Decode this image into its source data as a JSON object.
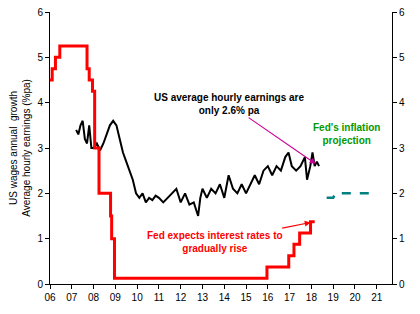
{
  "chart_data": {
    "type": "line",
    "y_label": "US wages annual  growth\nAverage hourly earnings (%pa)",
    "xlim": [
      2006,
      2021.7
    ],
    "xticks": [
      {
        "value": 2006,
        "label": "06"
      },
      {
        "value": 2007,
        "label": "07"
      },
      {
        "value": 2008,
        "label": "08"
      },
      {
        "value": 2009,
        "label": "09"
      },
      {
        "value": 2010,
        "label": "10"
      },
      {
        "value": 2011,
        "label": "11"
      },
      {
        "value": 2012,
        "label": "12"
      },
      {
        "value": 2013,
        "label": "13"
      },
      {
        "value": 2014,
        "label": "14"
      },
      {
        "value": 2015,
        "label": "15"
      },
      {
        "value": 2016,
        "label": "16"
      },
      {
        "value": 2017,
        "label": "17"
      },
      {
        "value": 2018,
        "label": "18"
      },
      {
        "value": 2019,
        "label": "19"
      },
      {
        "value": 2020,
        "label": "20"
      },
      {
        "value": 2021,
        "label": "21"
      }
    ],
    "ylim": [
      0,
      6
    ],
    "yticks": [
      0,
      1,
      2,
      3,
      4,
      5,
      6
    ],
    "y2lim": [
      0,
      6
    ],
    "y2ticks": [
      0,
      1,
      2,
      3,
      4,
      5,
      6
    ],
    "grid": false,
    "series": [
      {
        "color": "#000000",
        "line_style": "solid",
        "x": [
          2007.2,
          2007.3,
          2007.4,
          2007.5,
          2007.6,
          2007.7,
          2007.8,
          2007.9,
          2008.0,
          2008.15,
          2008.3,
          2008.45,
          2008.6,
          2008.75,
          2008.9,
          2009.05,
          2009.2,
          2009.35,
          2009.5,
          2009.65,
          2009.8,
          2009.95,
          2010.1,
          2010.25,
          2010.4,
          2010.55,
          2010.7,
          2010.85,
          2011.0,
          2011.2,
          2011.4,
          2011.6,
          2011.8,
          2012.0,
          2012.2,
          2012.4,
          2012.6,
          2012.8,
          2012.9,
          2013.0,
          2013.2,
          2013.4,
          2013.6,
          2013.8,
          2014.0,
          2014.2,
          2014.4,
          2014.6,
          2014.8,
          2015.0,
          2015.2,
          2015.4,
          2015.6,
          2015.8,
          2016.0,
          2016.2,
          2016.4,
          2016.6,
          2016.8,
          2016.95,
          2017.1,
          2017.3,
          2017.5,
          2017.7,
          2017.8,
          2017.95,
          2018.05,
          2018.15,
          2018.25,
          2018.35
        ],
        "values": [
          3.4,
          3.3,
          3.5,
          3.6,
          3.2,
          3.1,
          3.5,
          3.0,
          3.0,
          3.1,
          2.95,
          3.1,
          3.3,
          3.5,
          3.6,
          3.5,
          3.2,
          2.9,
          2.7,
          2.5,
          2.3,
          2.0,
          1.9,
          2.0,
          1.8,
          1.9,
          1.85,
          1.95,
          1.9,
          1.8,
          1.9,
          2.0,
          2.1,
          1.8,
          2.0,
          1.75,
          1.8,
          1.5,
          1.9,
          2.1,
          1.9,
          2.1,
          2.0,
          2.2,
          1.9,
          2.4,
          2.1,
          2.0,
          2.2,
          2.0,
          2.2,
          2.4,
          2.2,
          2.5,
          2.6,
          2.4,
          2.6,
          2.5,
          2.8,
          2.9,
          2.6,
          2.5,
          2.6,
          2.8,
          2.3,
          2.6,
          2.9,
          2.6,
          2.7,
          2.6
        ]
      },
      {
        "color": "#ff0000",
        "line_style": "step",
        "axis": "y2",
        "x": [
          2006.0,
          2006.1,
          2006.25,
          2006.45,
          2007.7,
          2007.8,
          2007.95,
          2008.05,
          2008.25,
          2008.78,
          2008.83,
          2008.96,
          2015.96,
          2016.96,
          2017.2,
          2017.46,
          2017.96,
          2018.15
        ],
        "values": [
          4.5,
          4.75,
          5.0,
          5.25,
          4.75,
          4.5,
          4.25,
          3.0,
          2.0,
          1.5,
          1.0,
          0.125,
          0.375,
          0.625,
          0.875,
          1.125,
          1.375,
          1.375
        ]
      },
      {
        "color": "#008080",
        "line_style": "dashed",
        "x": [
          2018.7,
          2019.0,
          2019.1,
          2021.0
        ],
        "values": [
          1.9,
          1.9,
          2.0,
          2.0
        ]
      }
    ],
    "annotations": [
      {
        "text": "US average hourly earnings are\nonly 2.6% pa",
        "color": "#000000",
        "arrow_color": "#cc0099"
      },
      {
        "text": "Fed's inflation\nprojection",
        "color": "#009900"
      },
      {
        "text": "Fed expects interest rates to\ngradually rise",
        "color": "#ff0000",
        "arrow_color": "#ff0000"
      }
    ]
  }
}
